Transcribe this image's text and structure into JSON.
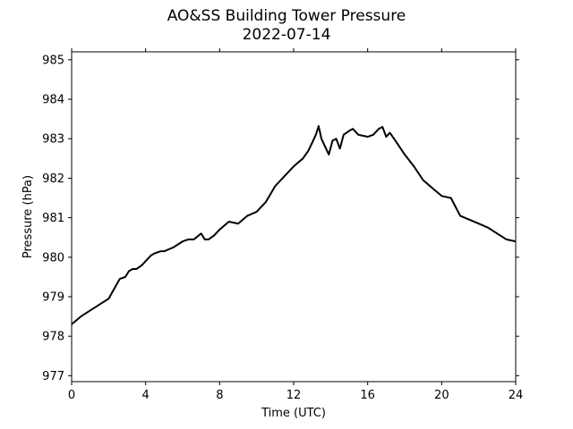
{
  "chart_data": {
    "type": "line",
    "title": "AO&SS Building Tower Pressure",
    "subtitle": "2022-07-14",
    "xlabel": "Time (UTC)",
    "ylabel": "Pressure (hPa)",
    "xlim": [
      0,
      24
    ],
    "ylim": [
      976.85,
      985.2
    ],
    "xticks": [
      0,
      4,
      8,
      12,
      16,
      20,
      24
    ],
    "yticks": [
      977,
      978,
      979,
      980,
      981,
      982,
      983,
      984,
      985
    ],
    "grid": false,
    "series": [
      {
        "color": "#000000",
        "x": [
          0,
          0.5,
          1.0,
          1.5,
          2.0,
          2.3,
          2.6,
          2.9,
          3.1,
          3.3,
          3.5,
          3.8,
          4.0,
          4.3,
          4.5,
          4.8,
          5.0,
          5.5,
          6.0,
          6.3,
          6.6,
          7.0,
          7.2,
          7.4,
          7.7,
          8.0,
          8.5,
          9.0,
          9.5,
          10.0,
          10.5,
          11.0,
          11.5,
          12.0,
          12.5,
          12.8,
          13.0,
          13.2,
          13.35,
          13.5,
          13.7,
          13.9,
          14.1,
          14.3,
          14.5,
          14.7,
          15.0,
          15.2,
          15.5,
          16.0,
          16.3,
          16.6,
          16.8,
          17.0,
          17.2,
          17.5,
          18.0,
          18.5,
          19.0,
          19.5,
          20.0,
          20.5,
          21.0,
          21.5,
          22.0,
          22.5,
          23.0,
          23.5,
          24.0
        ],
        "y": [
          978.3,
          978.5,
          978.65,
          978.8,
          978.95,
          979.2,
          979.45,
          979.5,
          979.65,
          979.7,
          979.7,
          979.8,
          979.9,
          980.05,
          980.1,
          980.15,
          980.15,
          980.25,
          980.4,
          980.45,
          980.45,
          980.6,
          980.45,
          980.45,
          980.55,
          980.7,
          980.9,
          980.85,
          981.05,
          981.15,
          981.4,
          981.8,
          982.05,
          982.3,
          982.5,
          982.7,
          982.9,
          983.1,
          983.32,
          983.0,
          982.8,
          982.6,
          982.95,
          983.0,
          982.75,
          983.1,
          983.2,
          983.25,
          983.1,
          983.05,
          983.1,
          983.25,
          983.3,
          983.05,
          983.15,
          982.95,
          982.6,
          982.3,
          981.95,
          981.75,
          981.55,
          981.5,
          981.05,
          980.95,
          980.85,
          980.75,
          980.6,
          980.45,
          980.4
        ]
      }
    ]
  }
}
